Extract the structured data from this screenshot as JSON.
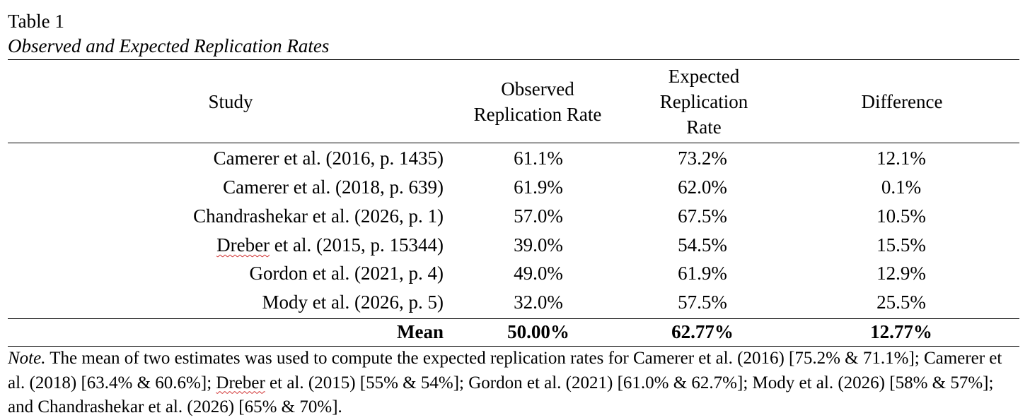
{
  "table_label": "Table 1",
  "table_title": "Observed and Expected Replication Rates",
  "headers": {
    "study": "Study",
    "observed_line1": "Observed",
    "observed_line2": "Replication Rate",
    "expected_line1": "Expected",
    "expected_line2": "Replication",
    "expected_line3": "Rate",
    "difference": "Difference"
  },
  "rows": [
    {
      "study_author": "Camerer",
      "study_rest": " et al. (2016, p. 1435)",
      "observed": "61.1%",
      "expected": "73.2%",
      "difference": "12.1%"
    },
    {
      "study_author": "Camerer",
      "study_rest": " et al. (2018, p. 639)",
      "observed": "61.9%",
      "expected": "62.0%",
      "difference": "0.1%"
    },
    {
      "study_author": "Chandrashekar",
      "study_rest": " et al. (2026, p. 1)",
      "observed": "57.0%",
      "expected": "67.5%",
      "difference": "10.5%"
    },
    {
      "study_author": "Dreber",
      "study_rest": " et al. (2015, p. 15344)",
      "observed": "39.0%",
      "expected": "54.5%",
      "difference": "15.5%"
    },
    {
      "study_author": "Gordon",
      "study_rest": " et al. (2021, p. 4)",
      "observed": "49.0%",
      "expected": "61.9%",
      "difference": "12.9%"
    },
    {
      "study_author": "Mody",
      "study_rest": " et al. (2026, p. 5)",
      "observed": "32.0%",
      "expected": "57.5%",
      "difference": "25.5%"
    }
  ],
  "mean": {
    "label": "Mean",
    "observed": "50.00%",
    "expected": "62.77%",
    "difference": "12.77%"
  },
  "note": {
    "label": "Note.",
    "text_part1": " The mean of two estimates was used to compute the expected replication rates for Camerer et al. (2016) [75.2% & 71.1%]; Camerer et al. (2018) [63.4% & 60.6%]; ",
    "dreber": "Dreber",
    "text_part2": " et al. (2015) [55% & 54%]; Gordon et al. (2021) [61.0% & 62.7%]; Mody et al. (2026) [58% & 57%]; and Chandrashekar et al. (2026) [65% & 70%]."
  }
}
